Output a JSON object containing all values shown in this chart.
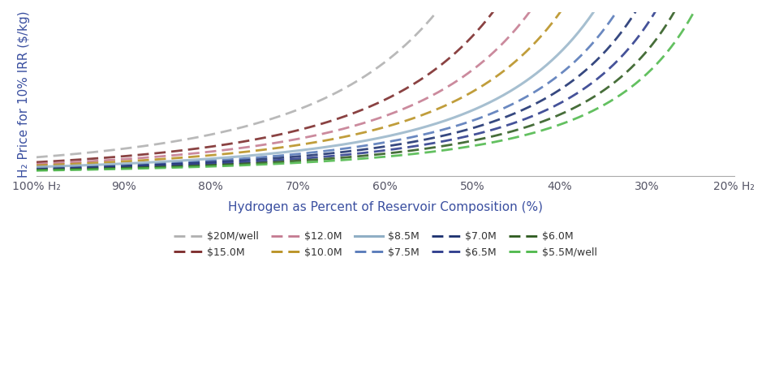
{
  "xlabel": "Hydrogen as Percent of Reservoir Composition (%)",
  "ylabel": "H₂ Price for 10% IRR ($/kg)",
  "background_color": "#ffffff",
  "grid_color": "#e0e0e8",
  "label_color": "#3a4fa0",
  "tick_color": "#555566",
  "series": [
    {
      "label": "$20M/well",
      "color": "#b0b0b0",
      "solid": false,
      "a": 1.05,
      "k": 3.5
    },
    {
      "label": "$15.0M",
      "color": "#7a2828",
      "solid": false,
      "a": 0.78,
      "k": 3.3
    },
    {
      "label": "$12.0M",
      "color": "#c47a90",
      "solid": false,
      "a": 0.68,
      "k": 3.1
    },
    {
      "label": "$10.0M",
      "color": "#b89020",
      "solid": false,
      "a": 0.6,
      "k": 2.95
    },
    {
      "label": "$8.5M",
      "color": "#90afc5",
      "solid": true,
      "a": 0.52,
      "k": 2.8
    },
    {
      "label": "$7.5M",
      "color": "#5578b8",
      "solid": false,
      "a": 0.47,
      "k": 2.7
    },
    {
      "label": "$7.0M",
      "color": "#1a2f6e",
      "solid": false,
      "a": 0.43,
      "k": 2.62
    },
    {
      "label": "$6.5M",
      "color": "#2b3a8b",
      "solid": false,
      "a": 0.39,
      "k": 2.54
    },
    {
      "label": "$6.0M",
      "color": "#2d5a1e",
      "solid": false,
      "a": 0.355,
      "k": 2.46
    },
    {
      "label": "$5.5M/well",
      "color": "#4db84a",
      "solid": false,
      "a": 0.32,
      "k": 2.38
    }
  ],
  "x_ticks": [
    100,
    90,
    80,
    70,
    60,
    50,
    40,
    30,
    20
  ],
  "x_tick_labels": [
    "100% H₂",
    "90%",
    "80%",
    "70%",
    "60%",
    "50%",
    "40%",
    "30%",
    "20% H₂"
  ],
  "ylim": [
    0,
    9
  ],
  "dash_pattern": [
    5,
    2.5
  ]
}
